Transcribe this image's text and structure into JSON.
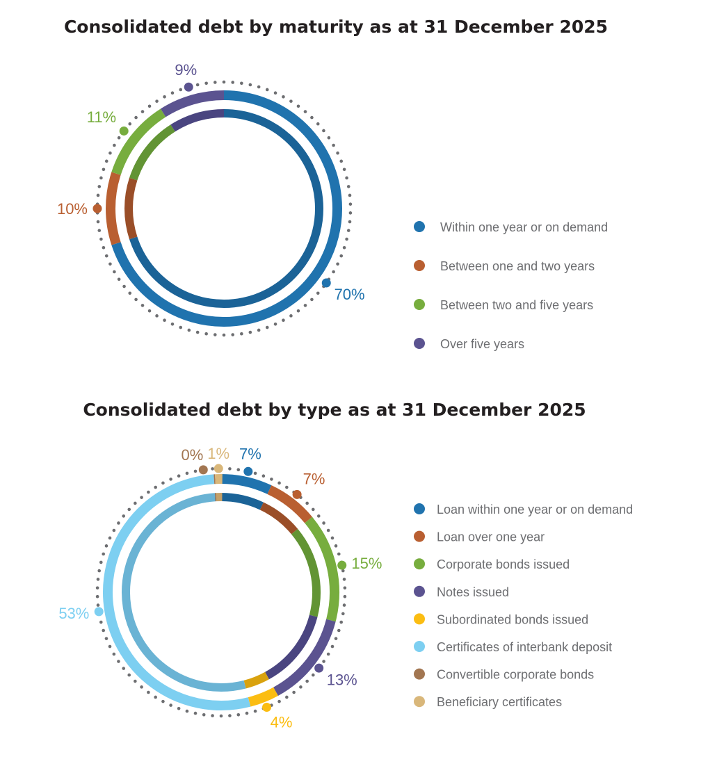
{
  "chart_data": [
    {
      "type": "pie",
      "title": "Consolidated debt by maturity as at 31 December 2025",
      "categories": [
        "Within one year or on demand",
        "Between one and two years",
        "Between two and five years",
        "Over five years"
      ],
      "values": [
        70,
        10,
        11,
        9
      ],
      "labels": [
        "70%",
        "10%",
        "11%",
        "9%"
      ],
      "colors": [
        "#2073ae",
        "#b95f31",
        "#77ad3e",
        "#5b5390"
      ],
      "inner_colors": [
        "#1b6397",
        "#9a4e28",
        "#629434",
        "#4a4580"
      ],
      "legend": "right"
    },
    {
      "type": "pie",
      "title": "Consolidated debt by type as at 31 December 2025",
      "categories": [
        "Loan within one year or on demand",
        "Loan over one year",
        "Corporate bonds issued",
        "Notes issued",
        "Subordinated bonds issued",
        "Certificates of interbank deposit",
        "Convertible corporate bonds",
        "Beneficiary certificates"
      ],
      "values": [
        7,
        7,
        15,
        13,
        4,
        53,
        0,
        1
      ],
      "labels": [
        "7%",
        "7%",
        "15%",
        "13%",
        "4%",
        "53%",
        "0%",
        "1%"
      ],
      "colors": [
        "#2073ae",
        "#b95f31",
        "#77ad3e",
        "#5b5390",
        "#fbbd12",
        "#7dcff1",
        "#a27651",
        "#d9b77a"
      ],
      "inner_colors": [
        "#1b6397",
        "#9a4e28",
        "#629434",
        "#4a4580",
        "#d9a20e",
        "#6ab3d4",
        "#8a6040",
        "#c4a068"
      ],
      "legend": "right"
    }
  ]
}
